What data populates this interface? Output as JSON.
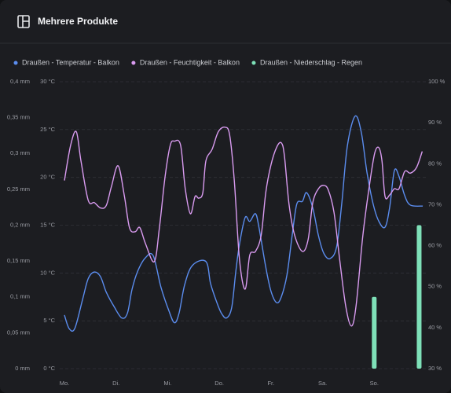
{
  "header": {
    "title": "Mehrere Produkte"
  },
  "chart_data": {
    "type": "line",
    "xlim": [
      0,
      7
    ],
    "xticks": [
      {
        "value": 0,
        "label": "Mo."
      },
      {
        "value": 1,
        "label": "Di."
      },
      {
        "value": 2,
        "label": "Mi."
      },
      {
        "value": 3,
        "label": "Do."
      },
      {
        "value": 4,
        "label": "Fr."
      },
      {
        "value": 5,
        "label": "Sa."
      },
      {
        "value": 6,
        "label": "So."
      }
    ],
    "ylim": [
      0,
      30
    ],
    "yticks": [
      {
        "value": 0,
        "label": "0 °C"
      },
      {
        "value": 5,
        "label": "5 °C"
      },
      {
        "value": 10,
        "label": "10 °C"
      },
      {
        "value": 15,
        "label": "15 °C"
      },
      {
        "value": 20,
        "label": "20 °C"
      },
      {
        "value": 25,
        "label": "25 °C"
      },
      {
        "value": 30,
        "label": "30 °C"
      }
    ],
    "y2lim": [
      30,
      100
    ],
    "y2ticks": [
      {
        "value": 30,
        "label": "30 %"
      },
      {
        "value": 40,
        "label": "40 %"
      },
      {
        "value": 50,
        "label": "50 %"
      },
      {
        "value": 60,
        "label": "60 %"
      },
      {
        "value": 70,
        "label": "70 %"
      },
      {
        "value": 80,
        "label": "80 %"
      },
      {
        "value": 90,
        "label": "90 %"
      },
      {
        "value": 100,
        "label": "100 %"
      }
    ],
    "y3lim": [
      0,
      0.4
    ],
    "y3ticks": [
      {
        "value": 0,
        "label": "0 mm"
      },
      {
        "value": 0.05,
        "label": "0,05 mm"
      },
      {
        "value": 0.1,
        "label": "0,1 mm"
      },
      {
        "value": 0.15,
        "label": "0,15 mm"
      },
      {
        "value": 0.2,
        "label": "0,2 mm"
      },
      {
        "value": 0.25,
        "label": "0,25 mm"
      },
      {
        "value": 0.3,
        "label": "0,3 mm"
      },
      {
        "value": 0.35,
        "label": "0,35 mm"
      },
      {
        "value": 0.4,
        "label": "0,4 mm"
      }
    ],
    "grid": true,
    "series": [
      {
        "name": "Draußen - Temperatur - Balkon",
        "color": "#5b8def",
        "kind": "line",
        "axis": "y",
        "x": [
          0.0,
          0.09,
          0.2,
          0.35,
          0.46,
          0.58,
          0.7,
          0.81,
          0.96,
          1.11,
          1.22,
          1.31,
          1.42,
          1.57,
          1.72,
          1.87,
          2.02,
          2.13,
          2.22,
          2.33,
          2.48,
          2.74,
          2.83,
          2.94,
          3.04,
          3.14,
          3.24,
          3.32,
          3.39,
          3.5,
          3.59,
          3.7,
          3.77,
          3.9,
          4.0,
          4.11,
          4.2,
          4.31,
          4.41,
          4.5,
          4.61,
          4.69,
          4.81,
          4.92,
          5.02,
          5.14,
          5.27,
          5.37,
          5.48,
          5.63,
          5.75,
          5.86,
          5.98,
          6.09,
          6.21,
          6.3,
          6.39,
          6.48,
          6.59,
          6.7,
          6.94
        ],
        "values": [
          5.6,
          4.2,
          4.2,
          7.2,
          9.4,
          10.1,
          9.6,
          8.0,
          6.5,
          5.3,
          5.8,
          8.3,
          10.2,
          11.6,
          11.8,
          8.5,
          6.1,
          4.8,
          5.8,
          8.8,
          10.8,
          11.2,
          8.9,
          7.1,
          5.8,
          5.3,
          6.4,
          10.2,
          13.0,
          15.8,
          15.4,
          16.2,
          14.7,
          10.6,
          8.1,
          6.9,
          7.5,
          9.8,
          13.9,
          17.2,
          17.5,
          18.4,
          16.8,
          13.9,
          12.1,
          11.5,
          12.7,
          17.2,
          23.3,
          26.4,
          24.7,
          20.5,
          17.2,
          15.4,
          14.8,
          16.9,
          20.7,
          20.1,
          18.1,
          17.1,
          17.0
        ]
      },
      {
        "name": "Draußen - Feuchtigkeit - Balkon",
        "color": "#d99bf0",
        "kind": "line",
        "axis": "y2",
        "x": [
          0.0,
          0.12,
          0.23,
          0.32,
          0.46,
          0.58,
          0.7,
          0.81,
          0.91,
          1.04,
          1.16,
          1.26,
          1.37,
          1.46,
          1.57,
          1.74,
          1.84,
          1.95,
          2.05,
          2.13,
          2.25,
          2.34,
          2.44,
          2.53,
          2.6,
          2.68,
          2.74,
          2.86,
          2.98,
          3.11,
          3.2,
          3.29,
          3.39,
          3.5,
          3.59,
          3.7,
          3.81,
          3.9,
          4.0,
          4.11,
          4.2,
          4.26,
          4.35,
          4.46,
          4.61,
          4.72,
          4.81,
          4.92,
          5.02,
          5.11,
          5.22,
          5.33,
          5.45,
          5.56,
          5.65,
          5.78,
          5.91,
          6.01,
          6.09,
          6.15,
          6.21,
          6.3,
          6.39,
          6.48,
          6.59,
          6.7,
          6.82,
          6.93
        ],
        "values": [
          75.9,
          84.5,
          87.8,
          80.7,
          71.1,
          70.5,
          69.2,
          69.8,
          74.4,
          79.5,
          72.2,
          64.4,
          63.4,
          64.4,
          60.5,
          56.1,
          64.4,
          76.9,
          84.5,
          85.5,
          84.5,
          73.9,
          67.8,
          72.0,
          71.6,
          72.9,
          80.7,
          83.5,
          87.8,
          88.9,
          87.0,
          75.9,
          56.7,
          49.4,
          57.7,
          58.6,
          62.5,
          73.0,
          79.7,
          84.0,
          85.1,
          82.0,
          70.1,
          62.5,
          58.6,
          61.5,
          70.5,
          73.9,
          74.7,
          73.6,
          68.2,
          56.7,
          45.1,
          40.4,
          45.5,
          62.5,
          75.0,
          82.6,
          83.9,
          80.7,
          72.0,
          72.4,
          73.9,
          73.9,
          78.1,
          77.7,
          79.1,
          83.0
        ]
      },
      {
        "name": "Draußen - Niederschlag - Regen",
        "color": "#7ee0b8",
        "kind": "bar",
        "axis": "y3",
        "x": [
          6.0,
          6.87
        ],
        "values": [
          0.1,
          0.2
        ]
      }
    ]
  }
}
